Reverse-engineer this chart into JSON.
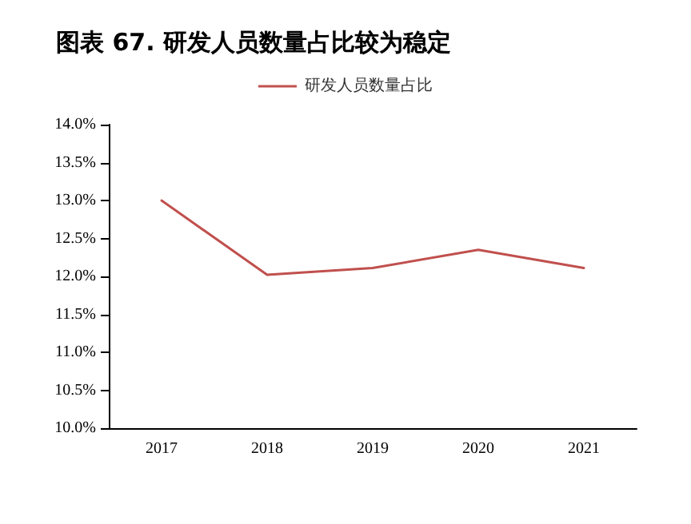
{
  "chart_data": {
    "type": "line",
    "title": "图表 67. 研发人员数量占比较为稳定",
    "categories": [
      "2017",
      "2018",
      "2019",
      "2020",
      "2021"
    ],
    "series": [
      {
        "name": "研发人员数量占比",
        "color": "#c0504d",
        "values": [
          13.0,
          12.02,
          12.11,
          12.35,
          12.11
        ]
      }
    ],
    "ylim": [
      10,
      14
    ],
    "yticks": [
      {
        "value": 10,
        "label": "10.0%"
      },
      {
        "value": 10.5,
        "label": "10.5%"
      },
      {
        "value": 11,
        "label": "11.0%"
      },
      {
        "value": 11.5,
        "label": "11.5%"
      },
      {
        "value": 12,
        "label": "12.0%"
      },
      {
        "value": 12.5,
        "label": "12.5%"
      },
      {
        "value": 13,
        "label": "13.0%"
      },
      {
        "value": 13.5,
        "label": "13.5%"
      },
      {
        "value": 14,
        "label": "14.0%"
      }
    ],
    "legend": "top",
    "grid": false,
    "marker": "none",
    "line_style": "solid"
  }
}
